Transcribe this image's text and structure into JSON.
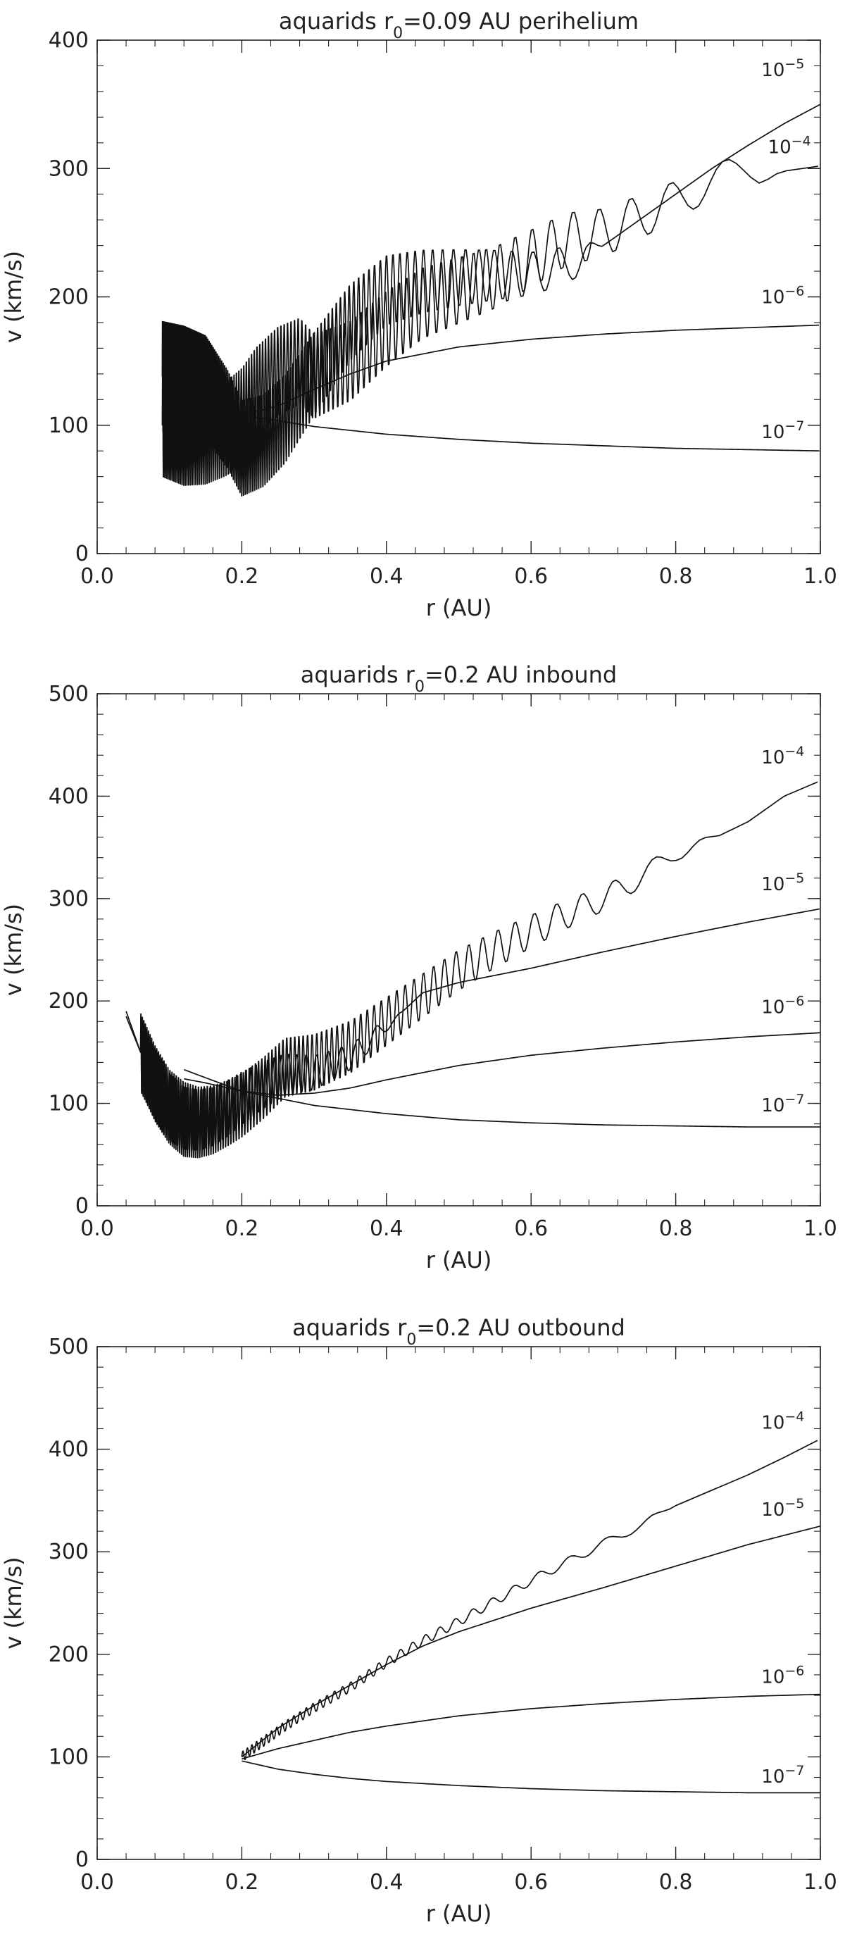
{
  "colors": {
    "line": "#111111",
    "axis": "#222222",
    "background": "#ffffff"
  },
  "chart_data": [
    {
      "type": "line",
      "title": {
        "prefix": "aquarids r",
        "subscript": "0",
        "suffix": "=0.09 AU perihelium"
      },
      "xlabel": "r (AU)",
      "ylabel": "v (km/s)",
      "xlim": [
        0.0,
        1.0
      ],
      "ylim": [
        0,
        400
      ],
      "xticks": [
        "0.0",
        "0.2",
        "0.4",
        "0.6",
        "0.8",
        "1.0"
      ],
      "yticks": [
        "0",
        "100",
        "200",
        "300",
        "400"
      ],
      "grid": false,
      "series": [
        {
          "name": "10^-5",
          "label_base": "10",
          "label_exp": "−5",
          "x": [
            0.09,
            0.12,
            0.15,
            0.18,
            0.2,
            0.23,
            0.26,
            0.3,
            0.35,
            0.4,
            0.45,
            0.5,
            0.55,
            0.6,
            0.65,
            0.7,
            0.75,
            0.8,
            0.85,
            0.9,
            0.95,
            1.0
          ],
          "y": [
            138,
            136,
            130,
            105,
            82,
            88,
            105,
            140,
            180,
            205,
            212,
            215,
            217,
            218,
            225,
            240,
            260,
            280,
            300,
            318,
            335,
            350
          ],
          "oscillation": {
            "x_start": 0.09,
            "x_end": 0.7,
            "amp_start": 45,
            "amp_end": 12,
            "period_start": 0.0012,
            "period_end": 0.06
          }
        },
        {
          "name": "10^-4",
          "label_base": "10",
          "label_exp": "−4",
          "x": [
            0.09,
            0.12,
            0.15,
            0.18,
            0.2,
            0.22,
            0.25,
            0.28,
            0.3,
            0.35,
            0.4,
            0.45,
            0.5,
            0.55,
            0.6,
            0.65,
            0.7,
            0.75,
            0.8,
            0.85,
            0.9,
            0.95,
            1.0
          ],
          "y": [
            100,
            92,
            92,
            98,
            108,
            125,
            142,
            150,
            138,
            150,
            175,
            195,
            205,
            215,
            230,
            245,
            250,
            262,
            275,
            290,
            300,
            298,
            302
          ],
          "oscillation": {
            "x_start": 0.09,
            "x_end": 0.95,
            "amp_start": 42,
            "amp_end": 10,
            "period_start": 0.002,
            "period_end": 0.14
          }
        },
        {
          "name": "10^-6",
          "label_base": "10",
          "label_exp": "−6",
          "x": [
            0.09,
            0.12,
            0.15,
            0.2,
            0.25,
            0.3,
            0.35,
            0.4,
            0.5,
            0.6,
            0.7,
            0.8,
            0.9,
            1.0
          ],
          "y": [
            118,
            112,
            108,
            108,
            115,
            128,
            140,
            150,
            161,
            167,
            171,
            174,
            176,
            178
          ]
        },
        {
          "name": "10^-7",
          "label_base": "10",
          "label_exp": "−7",
          "x": [
            0.09,
            0.12,
            0.15,
            0.2,
            0.3,
            0.4,
            0.5,
            0.6,
            0.7,
            0.8,
            0.9,
            1.0
          ],
          "y": [
            124,
            120,
            115,
            108,
            99,
            93,
            89,
            86,
            84,
            82,
            81,
            80
          ]
        }
      ]
    },
    {
      "type": "line",
      "title": {
        "prefix": "aquarids r",
        "subscript": "0",
        "suffix": "=0.2 AU inbound"
      },
      "xlabel": "r (AU)",
      "ylabel": "v (km/s)",
      "xlim": [
        0.0,
        1.0
      ],
      "ylim": [
        0,
        500
      ],
      "xticks": [
        "0.0",
        "0.2",
        "0.4",
        "0.6",
        "0.8",
        "1.0"
      ],
      "yticks": [
        "0",
        "100",
        "200",
        "300",
        "400",
        "500"
      ],
      "grid": false,
      "series": [
        {
          "name": "10^-4",
          "label_base": "10",
          "label_exp": "−4",
          "x": [
            0.04,
            0.06,
            0.08,
            0.1,
            0.12,
            0.14,
            0.16,
            0.18,
            0.2,
            0.23,
            0.26,
            0.3,
            0.35,
            0.4,
            0.45,
            0.5,
            0.55,
            0.6,
            0.65,
            0.7,
            0.75,
            0.8,
            0.85,
            0.9,
            0.95,
            1.0
          ],
          "y": [
            190,
            150,
            118,
            95,
            82,
            80,
            83,
            90,
            98,
            115,
            135,
            140,
            155,
            180,
            205,
            230,
            250,
            268,
            285,
            300,
            320,
            345,
            358,
            375,
            400,
            415
          ],
          "oscillation": {
            "x_start": 0.06,
            "x_end": 0.86,
            "amp_start": 38,
            "amp_end": 6,
            "period_start": 0.002,
            "period_end": 0.1
          }
        },
        {
          "name": "10^-5",
          "label_base": "10",
          "label_exp": "−5",
          "x": [
            0.04,
            0.06,
            0.08,
            0.1,
            0.12,
            0.14,
            0.16,
            0.18,
            0.2,
            0.23,
            0.26,
            0.3,
            0.35,
            0.4,
            0.45,
            0.5,
            0.6,
            0.7,
            0.8,
            0.9,
            1.0
          ],
          "y": [
            185,
            150,
            120,
            98,
            88,
            85,
            88,
            95,
            105,
            118,
            128,
            130,
            145,
            175,
            208,
            218,
            232,
            248,
            263,
            277,
            290
          ],
          "oscillation": {
            "x_start": 0.06,
            "x_end": 0.42,
            "amp_start": 40,
            "amp_end": 6,
            "period_start": 0.002,
            "period_end": 0.04
          }
        },
        {
          "name": "10^-6",
          "label_base": "10",
          "label_exp": "−6",
          "x": [
            0.12,
            0.15,
            0.2,
            0.25,
            0.3,
            0.35,
            0.4,
            0.5,
            0.6,
            0.7,
            0.8,
            0.9,
            1.0
          ],
          "y": [
            124,
            120,
            112,
            108,
            110,
            115,
            123,
            137,
            147,
            154,
            160,
            165,
            169
          ]
        },
        {
          "name": "10^-7",
          "label_base": "10",
          "label_exp": "−7",
          "x": [
            0.12,
            0.15,
            0.2,
            0.3,
            0.4,
            0.5,
            0.6,
            0.7,
            0.8,
            0.9,
            1.0
          ],
          "y": [
            133,
            125,
            112,
            98,
            90,
            84,
            81,
            79,
            78,
            77,
            77
          ]
        }
      ]
    },
    {
      "type": "line",
      "title": {
        "prefix": "aquarids r",
        "subscript": "0",
        "suffix": "=0.2 AU outbound"
      },
      "xlabel": "r (AU)",
      "ylabel": "v (km/s)",
      "xlim": [
        0.0,
        1.0
      ],
      "ylim": [
        0,
        500
      ],
      "xticks": [
        "0.0",
        "0.2",
        "0.4",
        "0.6",
        "0.8",
        "1.0"
      ],
      "yticks": [
        "0",
        "100",
        "200",
        "300",
        "400",
        "500"
      ],
      "grid": false,
      "series": [
        {
          "name": "10^-4",
          "label_base": "10",
          "label_exp": "−4",
          "x": [
            0.2,
            0.23,
            0.26,
            0.3,
            0.35,
            0.4,
            0.45,
            0.5,
            0.55,
            0.6,
            0.65,
            0.7,
            0.75,
            0.8,
            0.85,
            0.9,
            0.95,
            1.0
          ],
          "y": [
            100,
            115,
            130,
            148,
            168,
            192,
            213,
            232,
            252,
            272,
            290,
            308,
            325,
            345,
            360,
            375,
            392,
            410
          ],
          "oscillation": {
            "x_start": 0.2,
            "x_end": 0.8,
            "amp_start": 5,
            "amp_end": 4,
            "period_start": 0.006,
            "period_end": 0.09
          }
        },
        {
          "name": "10^-5",
          "label_base": "10",
          "label_exp": "−5",
          "x": [
            0.2,
            0.25,
            0.3,
            0.35,
            0.4,
            0.45,
            0.5,
            0.6,
            0.7,
            0.8,
            0.9,
            1.0
          ],
          "y": [
            100,
            128,
            150,
            170,
            190,
            208,
            222,
            245,
            265,
            286,
            307,
            325
          ]
        },
        {
          "name": "10^-6",
          "label_base": "10",
          "label_exp": "−6",
          "x": [
            0.2,
            0.25,
            0.3,
            0.35,
            0.4,
            0.5,
            0.6,
            0.7,
            0.8,
            0.9,
            1.0
          ],
          "y": [
            98,
            108,
            116,
            124,
            130,
            140,
            147,
            152,
            156,
            159,
            161
          ]
        },
        {
          "name": "10^-7",
          "label_base": "10",
          "label_exp": "−7",
          "x": [
            0.2,
            0.25,
            0.3,
            0.35,
            0.4,
            0.5,
            0.6,
            0.7,
            0.8,
            0.9,
            1.0
          ],
          "y": [
            96,
            88,
            83,
            79,
            76,
            72,
            69,
            67,
            66,
            65,
            65
          ]
        }
      ]
    }
  ]
}
